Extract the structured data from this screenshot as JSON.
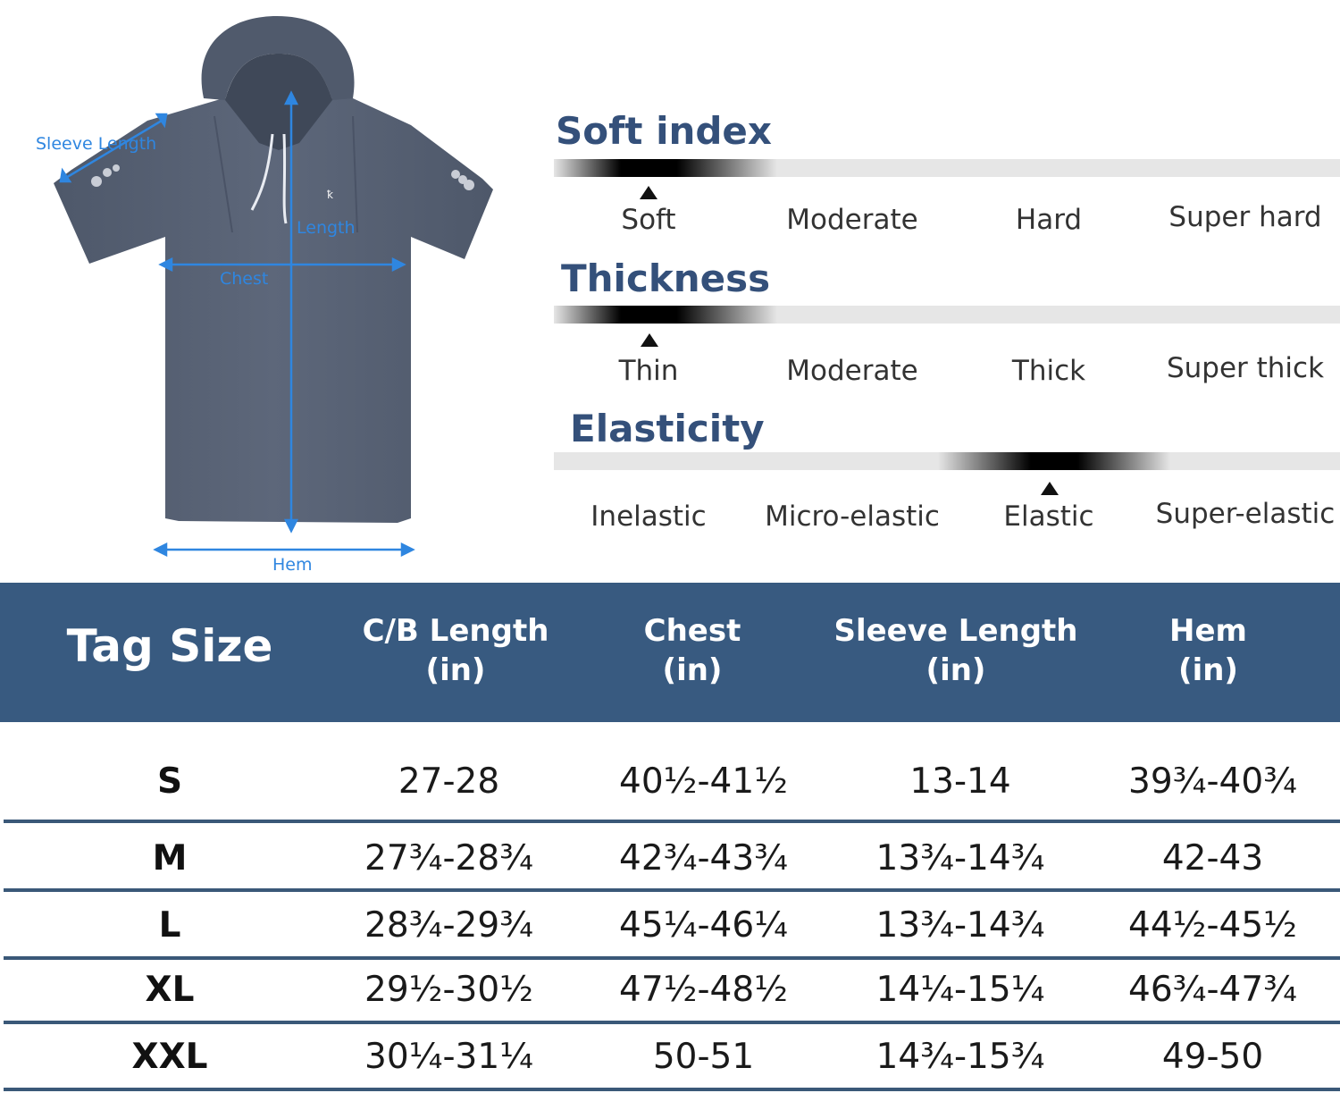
{
  "diagram_labels": {
    "sleeve_length": "Sleeve Length",
    "length": "Length",
    "chest": "Chest",
    "hem": "Hem"
  },
  "properties": [
    {
      "title": "Soft index",
      "levels": [
        "Soft",
        "Moderate",
        "Hard",
        "Super hard"
      ],
      "selected": 0
    },
    {
      "title": "Thickness",
      "levels": [
        "Thin",
        "Moderate",
        "Thick",
        "Super thick"
      ],
      "selected": 0
    },
    {
      "title": "Elasticity",
      "levels": [
        "Inelastic",
        "Micro-elastic",
        "Elastic",
        "Super-elastic"
      ],
      "selected": 2
    }
  ],
  "size_table": {
    "header": {
      "tag_size": "Tag Size",
      "columns": [
        {
          "name": "C/B Length",
          "unit": "(in)"
        },
        {
          "name": "Chest",
          "unit": "(in)"
        },
        {
          "name": "Sleeve Length",
          "unit": "(in)"
        },
        {
          "name": "Hem",
          "unit": "(in)"
        }
      ]
    },
    "rows": [
      {
        "size": "S",
        "values": [
          "27-28",
          "40½-41½",
          "13-14",
          "39¾-40¾"
        ]
      },
      {
        "size": "M",
        "values": [
          "27¾-28¾",
          "42¾-43¾",
          "13¾-14¾",
          "42-43"
        ]
      },
      {
        "size": "L",
        "values": [
          "28¾-29¾",
          "45¼-46¼",
          "13¾-14¾",
          "44½-45½"
        ]
      },
      {
        "size": "XL",
        "values": [
          "29½-30½",
          "47½-48½",
          "14¼-15¼",
          "46¾-47¾"
        ]
      },
      {
        "size": "XXL",
        "values": [
          "30¼-31¼",
          "50-51",
          "14¾-15¾",
          "49-50"
        ]
      }
    ]
  },
  "colors": {
    "header_bg": "#385a80",
    "title_text": "#34507a",
    "dimension_blue": "#2f86e0",
    "garment_gray": "#586275"
  }
}
